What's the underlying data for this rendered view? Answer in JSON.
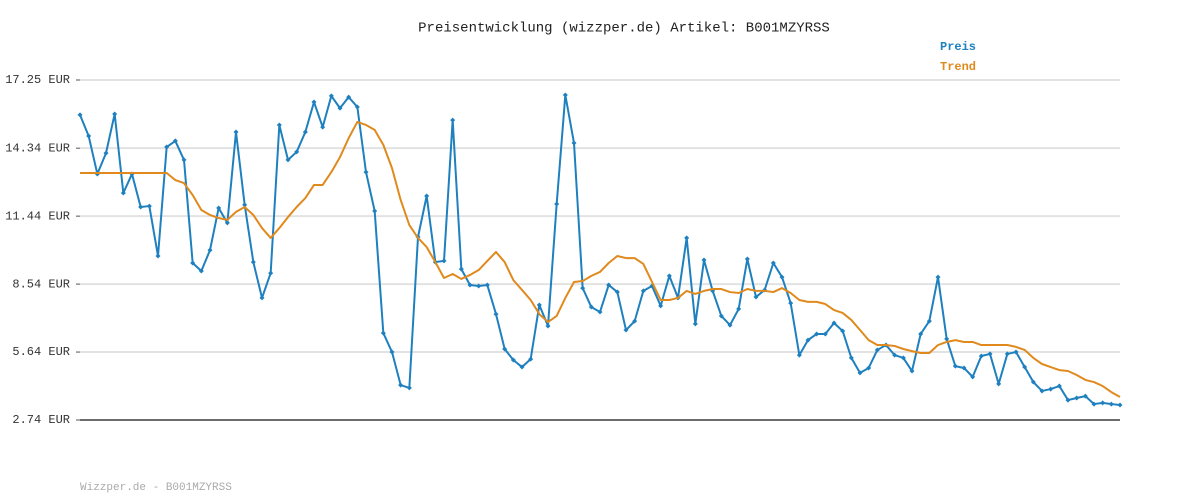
{
  "chart_data": {
    "type": "line",
    "title": "Preisentwicklung (wizzper.de) Artikel: B001MZYRSS",
    "footer": "Wizzper.de - B001MZYRSS",
    "legend": "top-right",
    "grid": true,
    "categories": [
      null,
      null,
      null,
      null,
      null,
      null,
      null,
      null,
      null,
      null,
      null,
      null,
      null,
      null,
      null,
      null,
      null,
      null,
      null,
      null,
      null,
      null,
      null,
      null,
      null,
      null,
      null,
      null,
      null,
      null,
      null,
      null,
      null,
      null,
      null,
      null,
      null,
      null,
      null,
      null,
      null,
      null,
      null,
      null,
      null,
      null,
      null,
      null,
      null,
      null,
      null,
      null,
      null,
      null,
      null,
      null,
      null,
      null,
      null,
      null,
      null,
      null,
      null,
      null,
      null,
      null,
      null,
      null,
      null,
      null,
      null,
      null,
      null,
      null,
      null,
      null,
      null,
      null,
      null,
      null,
      null,
      null,
      null,
      null,
      null,
      null,
      null,
      null,
      null,
      null,
      null,
      null,
      null,
      null,
      null,
      null,
      null,
      null,
      null,
      null,
      null,
      null,
      null,
      null,
      null,
      null,
      null,
      null,
      null,
      null,
      null,
      null,
      null,
      null,
      null,
      null,
      null,
      null,
      null,
      null,
      null
    ],
    "ylim": [
      2.74,
      17.25
    ],
    "yticks": [
      {
        "value": 2.74,
        "label": "2.74 EUR"
      },
      {
        "value": 5.64,
        "label": "5.64 EUR"
      },
      {
        "value": 8.54,
        "label": "8.54 EUR"
      },
      {
        "value": 11.44,
        "label": "11.44 EUR"
      },
      {
        "value": 14.34,
        "label": "14.34 EUR"
      },
      {
        "value": 17.25,
        "label": "17.25 EUR"
      }
    ],
    "series": [
      {
        "name": "Preis",
        "color": "#1f80bf",
        "markers": true,
        "values": [
          15.76,
          14.86,
          13.24,
          14.13,
          15.8,
          12.43,
          13.24,
          11.83,
          11.87,
          9.74,
          14.39,
          14.65,
          13.84,
          9.44,
          9.1,
          9.99,
          11.79,
          11.15,
          15.03,
          11.92,
          9.48,
          7.95,
          9.01,
          15.33,
          13.84,
          14.18,
          15.03,
          16.31,
          15.24,
          16.57,
          16.05,
          16.52,
          16.1,
          13.32,
          11.66,
          6.45,
          5.64,
          4.23,
          4.11,
          10.55,
          12.3,
          9.48,
          9.53,
          15.54,
          9.18,
          8.5,
          8.46,
          8.5,
          7.26,
          5.77,
          5.3,
          5.0,
          5.34,
          7.65,
          6.75,
          11.96,
          16.61,
          14.56,
          8.37,
          7.56,
          7.35,
          8.5,
          8.2,
          6.58,
          6.96,
          8.25,
          8.46,
          7.61,
          8.89,
          7.95,
          10.51,
          6.84,
          9.57,
          8.25,
          7.18,
          6.79,
          7.48,
          9.61,
          7.99,
          8.29,
          9.44,
          8.84,
          7.73,
          5.51,
          6.15,
          6.41,
          6.41,
          6.88,
          6.54,
          5.39,
          4.75,
          4.96,
          5.73,
          5.94,
          5.51,
          5.39,
          4.83,
          6.41,
          6.96,
          8.84,
          6.2,
          5.04,
          4.96,
          4.58,
          5.47,
          5.56,
          4.28,
          5.56,
          5.64,
          5.0,
          4.36,
          3.98,
          4.06,
          4.19,
          3.59,
          3.68,
          3.76,
          3.42,
          3.47,
          3.42,
          3.38
        ]
      },
      {
        "name": "Trend",
        "color": "#e08a1e",
        "markers": false,
        "values": [
          13.28,
          13.28,
          13.28,
          13.28,
          13.28,
          13.28,
          13.28,
          13.28,
          13.28,
          13.28,
          13.28,
          12.98,
          12.85,
          12.34,
          11.7,
          11.49,
          11.36,
          11.28,
          11.62,
          11.83,
          11.49,
          10.93,
          10.51,
          10.93,
          11.4,
          11.83,
          12.21,
          12.77,
          12.77,
          13.32,
          13.96,
          14.77,
          15.46,
          15.33,
          15.12,
          14.48,
          13.49,
          12.13,
          11.06,
          10.51,
          10.12,
          9.48,
          8.8,
          8.97,
          8.76,
          8.93,
          9.14,
          9.53,
          9.91,
          9.48,
          8.71,
          8.29,
          7.86,
          7.26,
          6.92,
          7.18,
          7.95,
          8.63,
          8.67,
          8.89,
          9.06,
          9.44,
          9.74,
          9.65,
          9.65,
          9.4,
          8.63,
          7.86,
          7.86,
          7.95,
          8.25,
          8.12,
          8.25,
          8.33,
          8.33,
          8.2,
          8.16,
          8.33,
          8.25,
          8.25,
          8.2,
          8.37,
          8.16,
          7.86,
          7.78,
          7.78,
          7.69,
          7.43,
          7.31,
          7.01,
          6.58,
          6.15,
          5.94,
          5.94,
          5.9,
          5.77,
          5.68,
          5.6,
          5.6,
          5.94,
          6.07,
          6.15,
          6.07,
          6.07,
          5.94,
          5.94,
          5.94,
          5.94,
          5.86,
          5.73,
          5.39,
          5.13,
          5.0,
          4.87,
          4.83,
          4.66,
          4.45,
          4.36,
          4.19,
          3.93,
          3.72
        ]
      }
    ]
  }
}
